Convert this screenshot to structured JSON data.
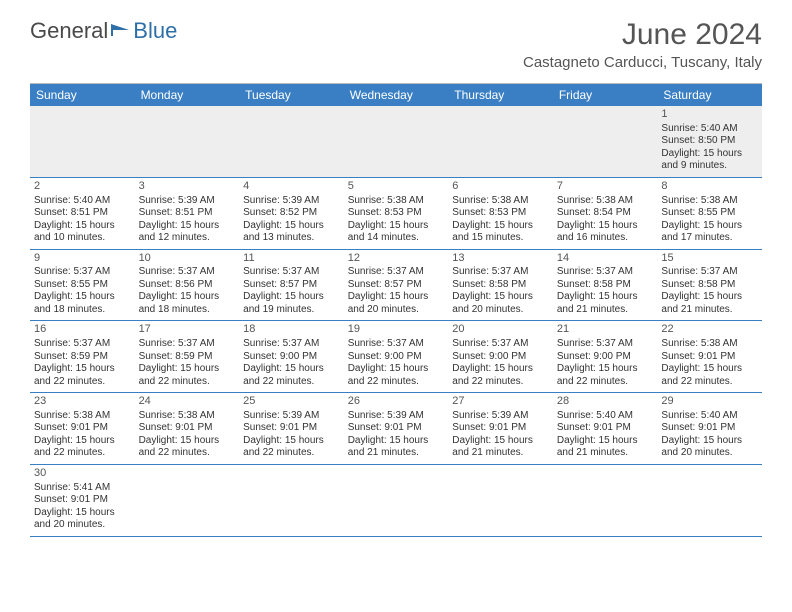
{
  "logo": {
    "text1": "General",
    "text2": "Blue"
  },
  "title": "June 2024",
  "location": "Castagneto Carducci, Tuscany, Italy",
  "colors": {
    "header_bg": "#3a7fc4",
    "header_text": "#ffffff",
    "border": "#3a7fc4",
    "text": "#333333",
    "title_text": "#555555",
    "logo_gray": "#4a4a4a",
    "logo_blue": "#2f6fa8",
    "empty_bg": "#eeeeee"
  },
  "day_names": [
    "Sunday",
    "Monday",
    "Tuesday",
    "Wednesday",
    "Thursday",
    "Friday",
    "Saturday"
  ],
  "weeks": [
    [
      {
        "n": "",
        "lines": [
          "",
          "",
          "",
          ""
        ]
      },
      {
        "n": "",
        "lines": [
          "",
          "",
          "",
          ""
        ]
      },
      {
        "n": "",
        "lines": [
          "",
          "",
          "",
          ""
        ]
      },
      {
        "n": "",
        "lines": [
          "",
          "",
          "",
          ""
        ]
      },
      {
        "n": "",
        "lines": [
          "",
          "",
          "",
          ""
        ]
      },
      {
        "n": "",
        "lines": [
          "",
          "",
          "",
          ""
        ]
      },
      {
        "n": "1",
        "lines": [
          "Sunrise: 5:40 AM",
          "Sunset: 8:50 PM",
          "Daylight: 15 hours",
          "and 9 minutes."
        ]
      }
    ],
    [
      {
        "n": "2",
        "lines": [
          "Sunrise: 5:40 AM",
          "Sunset: 8:51 PM",
          "Daylight: 15 hours",
          "and 10 minutes."
        ]
      },
      {
        "n": "3",
        "lines": [
          "Sunrise: 5:39 AM",
          "Sunset: 8:51 PM",
          "Daylight: 15 hours",
          "and 12 minutes."
        ]
      },
      {
        "n": "4",
        "lines": [
          "Sunrise: 5:39 AM",
          "Sunset: 8:52 PM",
          "Daylight: 15 hours",
          "and 13 minutes."
        ]
      },
      {
        "n": "5",
        "lines": [
          "Sunrise: 5:38 AM",
          "Sunset: 8:53 PM",
          "Daylight: 15 hours",
          "and 14 minutes."
        ]
      },
      {
        "n": "6",
        "lines": [
          "Sunrise: 5:38 AM",
          "Sunset: 8:53 PM",
          "Daylight: 15 hours",
          "and 15 minutes."
        ]
      },
      {
        "n": "7",
        "lines": [
          "Sunrise: 5:38 AM",
          "Sunset: 8:54 PM",
          "Daylight: 15 hours",
          "and 16 minutes."
        ]
      },
      {
        "n": "8",
        "lines": [
          "Sunrise: 5:38 AM",
          "Sunset: 8:55 PM",
          "Daylight: 15 hours",
          "and 17 minutes."
        ]
      }
    ],
    [
      {
        "n": "9",
        "lines": [
          "Sunrise: 5:37 AM",
          "Sunset: 8:55 PM",
          "Daylight: 15 hours",
          "and 18 minutes."
        ]
      },
      {
        "n": "10",
        "lines": [
          "Sunrise: 5:37 AM",
          "Sunset: 8:56 PM",
          "Daylight: 15 hours",
          "and 18 minutes."
        ]
      },
      {
        "n": "11",
        "lines": [
          "Sunrise: 5:37 AM",
          "Sunset: 8:57 PM",
          "Daylight: 15 hours",
          "and 19 minutes."
        ]
      },
      {
        "n": "12",
        "lines": [
          "Sunrise: 5:37 AM",
          "Sunset: 8:57 PM",
          "Daylight: 15 hours",
          "and 20 minutes."
        ]
      },
      {
        "n": "13",
        "lines": [
          "Sunrise: 5:37 AM",
          "Sunset: 8:58 PM",
          "Daylight: 15 hours",
          "and 20 minutes."
        ]
      },
      {
        "n": "14",
        "lines": [
          "Sunrise: 5:37 AM",
          "Sunset: 8:58 PM",
          "Daylight: 15 hours",
          "and 21 minutes."
        ]
      },
      {
        "n": "15",
        "lines": [
          "Sunrise: 5:37 AM",
          "Sunset: 8:58 PM",
          "Daylight: 15 hours",
          "and 21 minutes."
        ]
      }
    ],
    [
      {
        "n": "16",
        "lines": [
          "Sunrise: 5:37 AM",
          "Sunset: 8:59 PM",
          "Daylight: 15 hours",
          "and 22 minutes."
        ]
      },
      {
        "n": "17",
        "lines": [
          "Sunrise: 5:37 AM",
          "Sunset: 8:59 PM",
          "Daylight: 15 hours",
          "and 22 minutes."
        ]
      },
      {
        "n": "18",
        "lines": [
          "Sunrise: 5:37 AM",
          "Sunset: 9:00 PM",
          "Daylight: 15 hours",
          "and 22 minutes."
        ]
      },
      {
        "n": "19",
        "lines": [
          "Sunrise: 5:37 AM",
          "Sunset: 9:00 PM",
          "Daylight: 15 hours",
          "and 22 minutes."
        ]
      },
      {
        "n": "20",
        "lines": [
          "Sunrise: 5:37 AM",
          "Sunset: 9:00 PM",
          "Daylight: 15 hours",
          "and 22 minutes."
        ]
      },
      {
        "n": "21",
        "lines": [
          "Sunrise: 5:37 AM",
          "Sunset: 9:00 PM",
          "Daylight: 15 hours",
          "and 22 minutes."
        ]
      },
      {
        "n": "22",
        "lines": [
          "Sunrise: 5:38 AM",
          "Sunset: 9:01 PM",
          "Daylight: 15 hours",
          "and 22 minutes."
        ]
      }
    ],
    [
      {
        "n": "23",
        "lines": [
          "Sunrise: 5:38 AM",
          "Sunset: 9:01 PM",
          "Daylight: 15 hours",
          "and 22 minutes."
        ]
      },
      {
        "n": "24",
        "lines": [
          "Sunrise: 5:38 AM",
          "Sunset: 9:01 PM",
          "Daylight: 15 hours",
          "and 22 minutes."
        ]
      },
      {
        "n": "25",
        "lines": [
          "Sunrise: 5:39 AM",
          "Sunset: 9:01 PM",
          "Daylight: 15 hours",
          "and 22 minutes."
        ]
      },
      {
        "n": "26",
        "lines": [
          "Sunrise: 5:39 AM",
          "Sunset: 9:01 PM",
          "Daylight: 15 hours",
          "and 21 minutes."
        ]
      },
      {
        "n": "27",
        "lines": [
          "Sunrise: 5:39 AM",
          "Sunset: 9:01 PM",
          "Daylight: 15 hours",
          "and 21 minutes."
        ]
      },
      {
        "n": "28",
        "lines": [
          "Sunrise: 5:40 AM",
          "Sunset: 9:01 PM",
          "Daylight: 15 hours",
          "and 21 minutes."
        ]
      },
      {
        "n": "29",
        "lines": [
          "Sunrise: 5:40 AM",
          "Sunset: 9:01 PM",
          "Daylight: 15 hours",
          "and 20 minutes."
        ]
      }
    ],
    [
      {
        "n": "30",
        "lines": [
          "Sunrise: 5:41 AM",
          "Sunset: 9:01 PM",
          "Daylight: 15 hours",
          "and 20 minutes."
        ]
      },
      {
        "n": "",
        "lines": [
          "",
          "",
          "",
          ""
        ]
      },
      {
        "n": "",
        "lines": [
          "",
          "",
          "",
          ""
        ]
      },
      {
        "n": "",
        "lines": [
          "",
          "",
          "",
          ""
        ]
      },
      {
        "n": "",
        "lines": [
          "",
          "",
          "",
          ""
        ]
      },
      {
        "n": "",
        "lines": [
          "",
          "",
          "",
          ""
        ]
      },
      {
        "n": "",
        "lines": [
          "",
          "",
          "",
          ""
        ]
      }
    ]
  ]
}
